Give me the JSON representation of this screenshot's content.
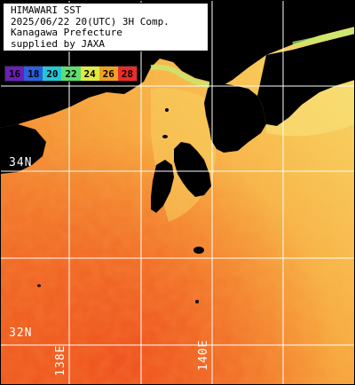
{
  "info": {
    "lines": [
      "HIMAWARI SST",
      "2025/06/22 20(UTC) 3H Comp.",
      "Kanagawa Prefecture",
      "supplied by JAXA"
    ]
  },
  "legend": {
    "ticks": [
      "16",
      "18",
      "20",
      "22",
      "24",
      "26",
      "28"
    ],
    "colors": [
      "#6a1fb8",
      "#2a5fe0",
      "#22c8d8",
      "#5ede70",
      "#e0ea40",
      "#f0a020",
      "#ee2a28"
    ]
  },
  "grid_labels": {
    "lat_34": "34N",
    "lat_32": "32N",
    "lon_138": "138E",
    "lon_140": "140E"
  },
  "colors": {
    "land": "#000000",
    "grid": "#ffffff",
    "sea_warm": "#f05a20",
    "sea_mid": "#f6952e",
    "sea_cool": "#f7c552"
  }
}
